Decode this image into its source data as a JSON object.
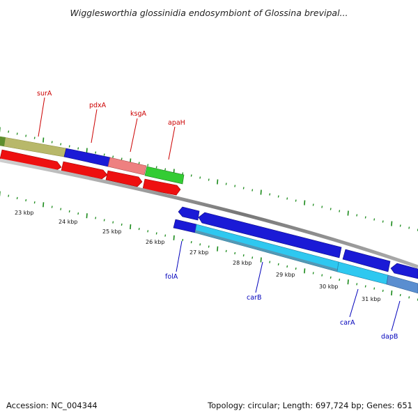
{
  "title": "Wigglesworthia glossinidia endosymbiont of Glossina brevipal...",
  "footer": {
    "accession": "Accession: NC_004344",
    "summary": "Topology: circular; Length: 697,724 bp; Genes: 651"
  },
  "colors": {
    "backbone": "#8a8a8a",
    "tick": "#1a8a1a",
    "label_top": "#cc0000",
    "label_bottom": "#0000bb"
  },
  "kbp_labels": [
    "23 kbp",
    "24 kbp",
    "25 kbp",
    "26 kbp",
    "27 kbp",
    "28 kbp",
    "29 kbp",
    "30 kbp",
    "31 kbp"
  ],
  "top_genes": [
    {
      "name": "surA",
      "color": "#b8b86a"
    },
    {
      "name": "pdxA",
      "color": "#1a1ad6"
    },
    {
      "name": "ksgA",
      "color": "#ee8080"
    },
    {
      "name": "apaH",
      "color": "#33cc33"
    }
  ],
  "bottom_genes": [
    {
      "name": "folA",
      "color": "#1a1ad6"
    },
    {
      "name": "carB",
      "color": "#2ec8f0"
    },
    {
      "name": "carA",
      "color": "#2ec8f0"
    },
    {
      "name": "dapB",
      "color": "#5a8ed0"
    }
  ]
}
